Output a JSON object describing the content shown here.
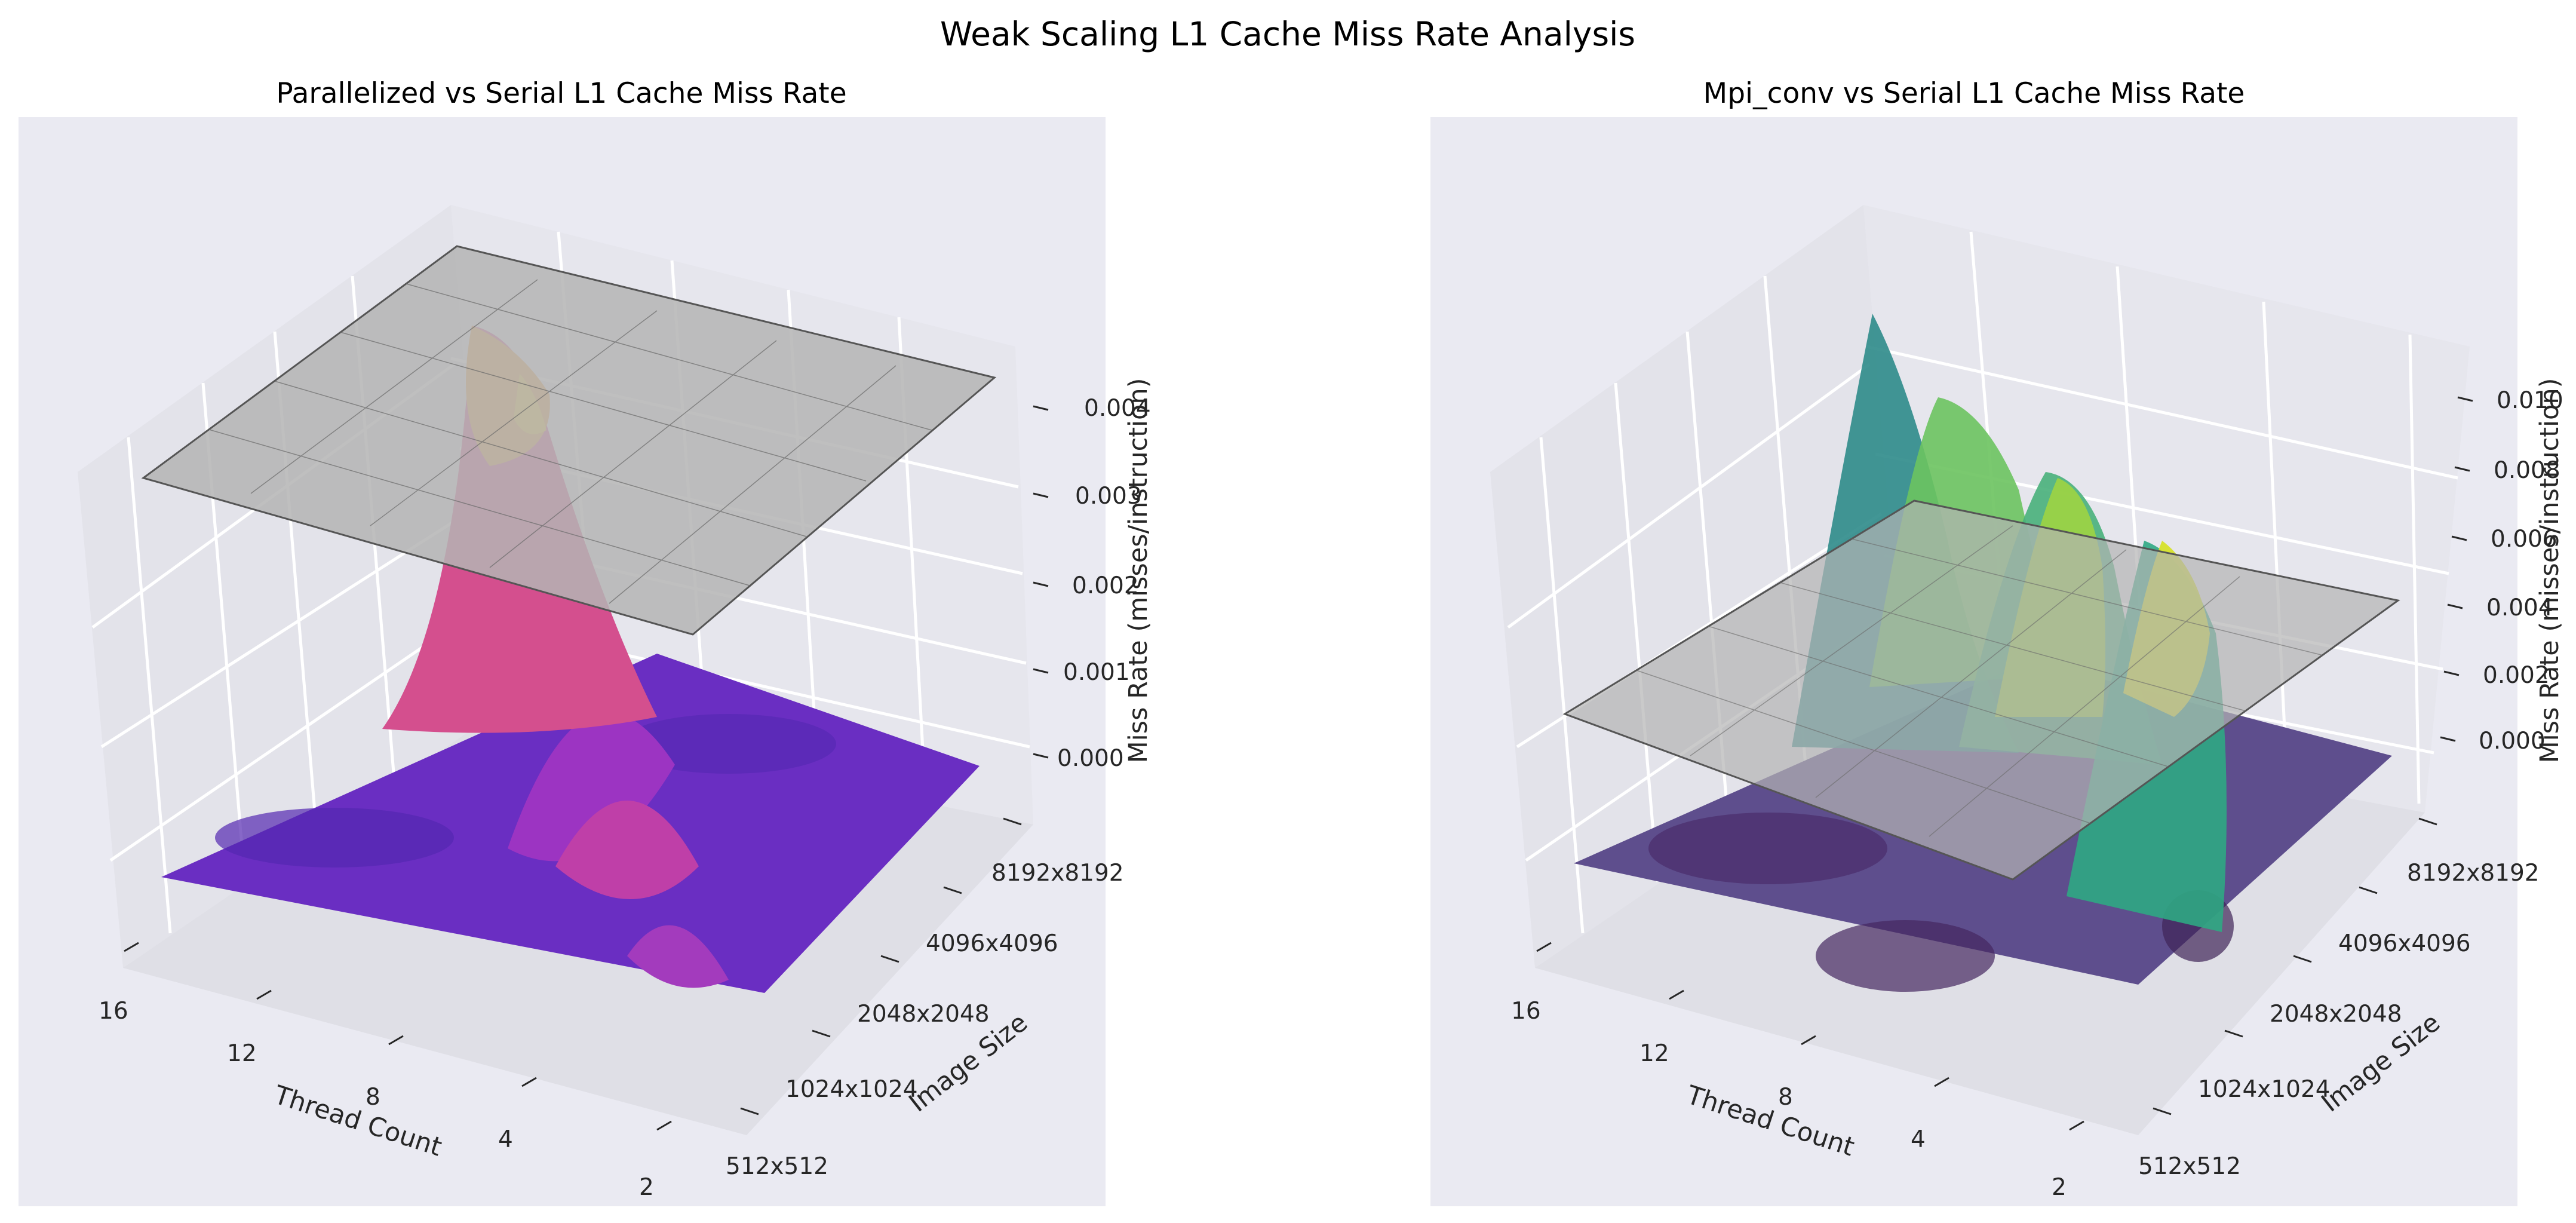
{
  "figure": {
    "title": "Weak Scaling L1 Cache Miss Rate Analysis"
  },
  "chart_data": [
    {
      "type": "surface3d",
      "title": "Parallelized vs Serial L1 Cache Miss Rate",
      "xlabel": "Thread Count",
      "ylabel": "Image Size",
      "zlabel": "Miss Rate (misses/instruction)",
      "x_ticks": [
        "2",
        "4",
        "8",
        "12",
        "16"
      ],
      "y_ticks": [
        "512x512",
        "1024x1024",
        "2048x2048",
        "4096x4096",
        "8192x8192"
      ],
      "z_ticks": [
        "0.000",
        "0.001",
        "0.002",
        "0.003",
        "0.004"
      ],
      "zlim": [
        0,
        0.0045
      ],
      "colormap": "plasma",
      "series": [
        {
          "role": "serial-reference-surface",
          "color": "#a0a0a0",
          "z_levels": [
            0.0033,
            0.0035,
            0.0037,
            0.0039,
            0.0041
          ]
        },
        {
          "role": "parallel-surface",
          "note_peak_max": 0.0045,
          "peaks": [
            {
              "thread": 12,
              "size": "2048x2048",
              "value": 0.0045
            },
            {
              "thread": 8,
              "size": "1024x1024",
              "value": 0.0011
            },
            {
              "thread": 4,
              "size": "512x512",
              "value": 0.0007
            }
          ]
        }
      ]
    },
    {
      "type": "surface3d",
      "title": "Mpi_conv vs Serial L1 Cache Miss Rate",
      "xlabel": "Thread Count",
      "ylabel": "Image Size",
      "zlabel": "Miss Rate (misses/instruction)",
      "x_ticks": [
        "2",
        "4",
        "8",
        "12",
        "16"
      ],
      "y_ticks": [
        "512x512",
        "1024x1024",
        "2048x2048",
        "4096x4096",
        "8192x8192"
      ],
      "z_ticks": [
        "0.000",
        "0.002",
        "0.004",
        "0.006",
        "0.008",
        "0.010"
      ],
      "zlim": [
        -0.002,
        0.011
      ],
      "colormap": "viridis",
      "series": [
        {
          "role": "serial-reference-surface",
          "color": "#a0a0a0",
          "z_levels": [
            0.0031,
            0.0033,
            0.0035,
            0.0037,
            0.0039
          ]
        },
        {
          "role": "mpi-surface",
          "ridges": [
            {
              "size": "8192x8192",
              "value": 0.0101
            },
            {
              "size": "4096x4096",
              "value": 0.009
            },
            {
              "size": "2048x2048",
              "value": 0.0085
            },
            {
              "size": "1024x1024",
              "value": 0.008
            }
          ]
        }
      ]
    }
  ]
}
